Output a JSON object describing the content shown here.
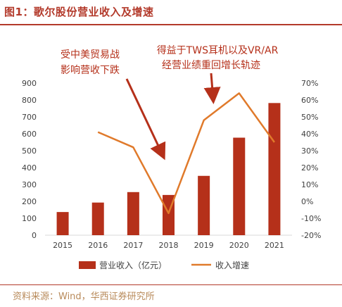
{
  "title": "图1：歌尔股份营业收入及增速",
  "source": "资料来源：Wind，华西证券研究所",
  "chart_data": {
    "type": "bar",
    "categories": [
      "2015",
      "2016",
      "2017",
      "2018",
      "2019",
      "2020",
      "2021"
    ],
    "series": [
      {
        "name": "营业收入（亿元）",
        "type": "bar",
        "axis": "left",
        "values": [
          137,
          193,
          255,
          238,
          351,
          577,
          782
        ]
      },
      {
        "name": "收入增速",
        "type": "line",
        "axis": "right",
        "values": [
          null,
          41,
          32,
          -7,
          48,
          64,
          35
        ]
      }
    ],
    "y_left": {
      "range": [
        0,
        900
      ],
      "ticks": [
        0,
        100,
        200,
        300,
        400,
        500,
        600,
        700,
        800,
        900
      ]
    },
    "y_right": {
      "range": [
        -20,
        70
      ],
      "ticks": [
        "-20%",
        "-10%",
        "0%",
        "10%",
        "20%",
        "30%",
        "40%",
        "50%",
        "60%",
        "70%"
      ]
    },
    "grid": false,
    "legend": "bottom",
    "annotations": [
      {
        "lines": [
          "受中美贸易战",
          "影响营收下跌"
        ],
        "points_to": "2018"
      },
      {
        "lines": [
          "得益于TWS耳机以及VR/AR",
          "经营业绩重回增长轨迹"
        ],
        "points_to": "2019"
      }
    ],
    "colors": {
      "bar": "#b5301a",
      "line": "#e07a2b",
      "arrow": "#b5301a",
      "axis": "#d9d9d9",
      "text": "#404040",
      "annotation": "#b5301a"
    }
  }
}
